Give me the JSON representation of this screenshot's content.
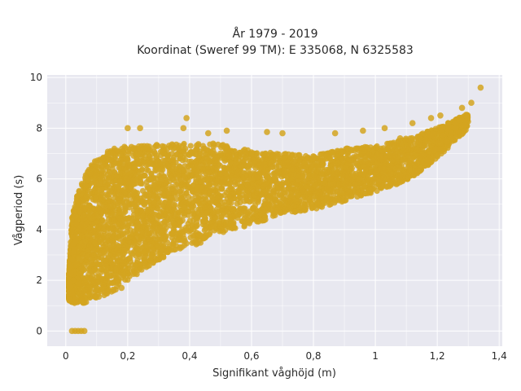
{
  "chart_data": {
    "type": "scatter",
    "title_lines": [
      "År 1979 - 2019",
      "Koordinat (Sweref 99 TM): E 335068, N 6325583"
    ],
    "xlabel": "Signifikant våghöjd (m)",
    "ylabel": "Vågperiod (s)",
    "xlim": [
      -0.06,
      1.41
    ],
    "ylim": [
      -0.6,
      10.1
    ],
    "x_ticks": [
      0,
      0.2,
      0.4,
      0.6,
      0.8,
      1,
      1.2,
      1.4
    ],
    "x_tick_labels": [
      "0",
      "0,2",
      "0,4",
      "0,6",
      "0,8",
      "1",
      "1,2",
      "1,4"
    ],
    "y_ticks": [
      0,
      2,
      4,
      6,
      8,
      10
    ],
    "y_tick_labels": [
      "0",
      "2",
      "4",
      "6",
      "8",
      "10"
    ],
    "grid": true,
    "legend": "none",
    "colors": {
      "marker": "#d4a520",
      "plot_bg": "#e8e8f0",
      "grid": "#ffffff"
    },
    "envelope": {
      "x": [
        0.01,
        0.02,
        0.04,
        0.06,
        0.08,
        0.1,
        0.15,
        0.2,
        0.3,
        0.4,
        0.5,
        0.6,
        0.7,
        0.8,
        0.9,
        1.0,
        1.1,
        1.2,
        1.25,
        1.3
      ],
      "y_low": [
        1.2,
        1.1,
        1.1,
        1.1,
        1.2,
        1.3,
        1.5,
        2.0,
        2.8,
        3.3,
        3.8,
        4.2,
        4.6,
        4.8,
        5.1,
        5.5,
        5.9,
        6.8,
        7.4,
        8.0
      ],
      "y_high": [
        2.2,
        4.5,
        5.5,
        6.1,
        6.5,
        6.8,
        7.2,
        7.3,
        7.35,
        7.4,
        7.4,
        7.1,
        7.0,
        6.9,
        7.2,
        7.3,
        7.6,
        8.0,
        8.3,
        8.6
      ]
    },
    "points": [
      [
        0.02,
        0
      ],
      [
        0.03,
        0
      ],
      [
        0.04,
        0
      ],
      [
        0.05,
        0
      ],
      [
        0.06,
        0
      ],
      [
        0.2,
        8.0
      ],
      [
        0.24,
        8.0
      ],
      [
        0.39,
        8.4
      ],
      [
        0.38,
        8.0
      ],
      [
        0.46,
        7.8
      ],
      [
        0.52,
        7.9
      ],
      [
        0.65,
        7.85
      ],
      [
        0.7,
        7.8
      ],
      [
        0.87,
        7.8
      ],
      [
        0.96,
        7.9
      ],
      [
        1.03,
        8.0
      ],
      [
        1.08,
        7.6
      ],
      [
        1.12,
        8.2
      ],
      [
        1.18,
        8.4
      ],
      [
        1.21,
        8.5
      ],
      [
        1.28,
        8.8
      ],
      [
        1.31,
        9.0
      ],
      [
        1.34,
        9.6
      ],
      [
        0.12,
        1.7
      ],
      [
        0.15,
        1.9
      ],
      [
        0.18,
        1.7
      ],
      [
        0.28,
        3.0
      ],
      [
        0.34,
        3.2
      ],
      [
        0.95,
        6.0
      ],
      [
        1.05,
        6.2
      ]
    ]
  }
}
